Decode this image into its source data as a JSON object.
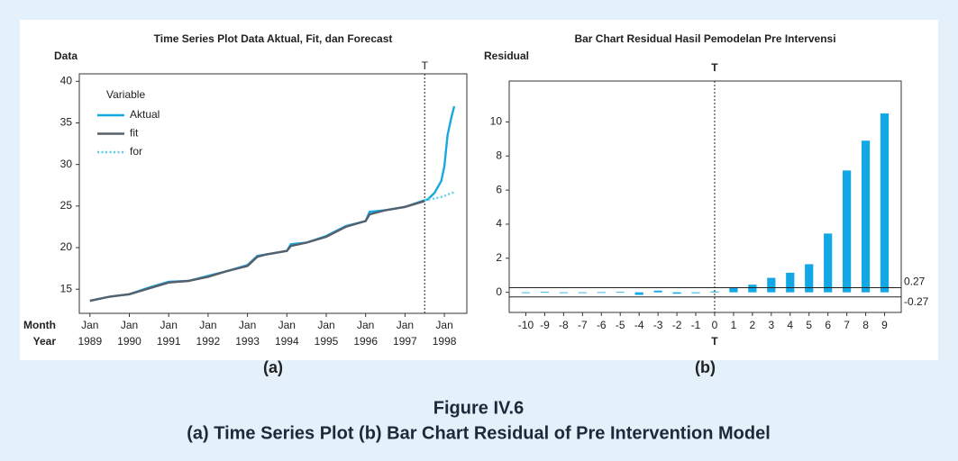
{
  "figure": {
    "label": "Figure IV.6",
    "caption": "(a) Time Series Plot (b) Bar Chart Residual of Pre Intervention Model"
  },
  "chart_data": [
    {
      "type": "line",
      "label": "(a)",
      "title": "Time Series Plot Data Aktual, Fit, dan Forecast",
      "ylabel": "Data",
      "xlabel": "Month",
      "xlabel2": "Year",
      "x": [
        1989,
        1989.5,
        1990,
        1990.5,
        1991,
        1991.5,
        1992,
        1992.5,
        1993,
        1993.25,
        1993.5,
        1994,
        1994.1,
        1994.5,
        1995,
        1995.5,
        1996,
        1996.1,
        1996.5,
        1997,
        1997.5,
        1997.58,
        1997.75,
        1997.92,
        1998,
        1998.08,
        1998.17,
        1998.25
      ],
      "series": [
        {
          "name": "Aktual",
          "color": "#1aa7e0",
          "linestyle": "solid",
          "values": [
            13.6,
            14.1,
            14.4,
            15.2,
            15.9,
            16.0,
            16.6,
            17.2,
            17.9,
            19.0,
            19.2,
            19.6,
            20.4,
            20.6,
            21.4,
            22.6,
            23.2,
            24.3,
            24.5,
            24.9,
            25.7,
            25.8,
            26.6,
            28.0,
            29.8,
            33.5,
            35.5,
            37.0
          ]
        },
        {
          "name": "fit",
          "color": "#55606a",
          "linestyle": "solid",
          "values": [
            13.6,
            14.1,
            14.4,
            15.1,
            15.8,
            16.0,
            16.5,
            17.2,
            17.8,
            18.9,
            19.2,
            19.6,
            20.2,
            20.6,
            21.3,
            22.5,
            23.2,
            24.0,
            24.5,
            24.9,
            25.6,
            null,
            null,
            null,
            null,
            null,
            null,
            null
          ]
        },
        {
          "name": "for",
          "color": "#5ccde8",
          "linestyle": "dotted",
          "values": [
            null,
            null,
            null,
            null,
            null,
            null,
            null,
            null,
            null,
            null,
            null,
            null,
            null,
            null,
            null,
            null,
            null,
            null,
            null,
            null,
            25.7,
            25.8,
            25.9,
            26.1,
            26.2,
            26.4,
            26.5,
            26.7
          ]
        }
      ],
      "legend_title": "Variable",
      "legend": "upper left",
      "vline": {
        "x": 1997.5,
        "label": "T"
      },
      "xlim": [
        1988.73,
        1998.57
      ],
      "ylim": [
        12.1,
        40.9
      ],
      "xticks": [
        {
          "value": 1989,
          "label": "Jan"
        },
        {
          "value": 1990,
          "label": "Jan"
        },
        {
          "value": 1991,
          "label": "Jan"
        },
        {
          "value": 1992,
          "label": "Jan"
        },
        {
          "value": 1993,
          "label": "Jan"
        },
        {
          "value": 1994,
          "label": "Jan"
        },
        {
          "value": 1995,
          "label": "Jan"
        },
        {
          "value": 1996,
          "label": "Jan"
        },
        {
          "value": 1997,
          "label": "Jan"
        },
        {
          "value": 1998,
          "label": "Jan"
        }
      ],
      "year_ticks": [
        1989,
        1990,
        1991,
        1992,
        1993,
        1994,
        1995,
        1996,
        1997,
        1998
      ],
      "yticks": [
        15,
        20,
        25,
        30,
        35,
        40
      ]
    },
    {
      "type": "bar",
      "label": "(b)",
      "title": "Bar Chart Residual Hasil Pemodelan Pre Intervensi",
      "ylabel": "Residual",
      "xlabel": "T",
      "categories": [
        -10,
        -9,
        -8,
        -7,
        -6,
        -5,
        -4,
        -3,
        -2,
        -1,
        0,
        1,
        2,
        3,
        4,
        5,
        6,
        7,
        8,
        9
      ],
      "values": [
        -0.02,
        0.02,
        -0.03,
        -0.01,
        0.01,
        0.02,
        -0.15,
        0.1,
        -0.08,
        -0.05,
        0.05,
        0.25,
        0.45,
        0.85,
        1.15,
        1.65,
        3.45,
        7.15,
        8.9,
        10.5
      ],
      "color": "#12a8e6",
      "hlines": [
        0.27,
        -0.27
      ],
      "vline": {
        "x": 0,
        "label": "T"
      },
      "ylim": [
        -1.18,
        12.4
      ],
      "yticks": [
        0,
        2,
        4,
        6,
        8,
        10
      ]
    }
  ]
}
